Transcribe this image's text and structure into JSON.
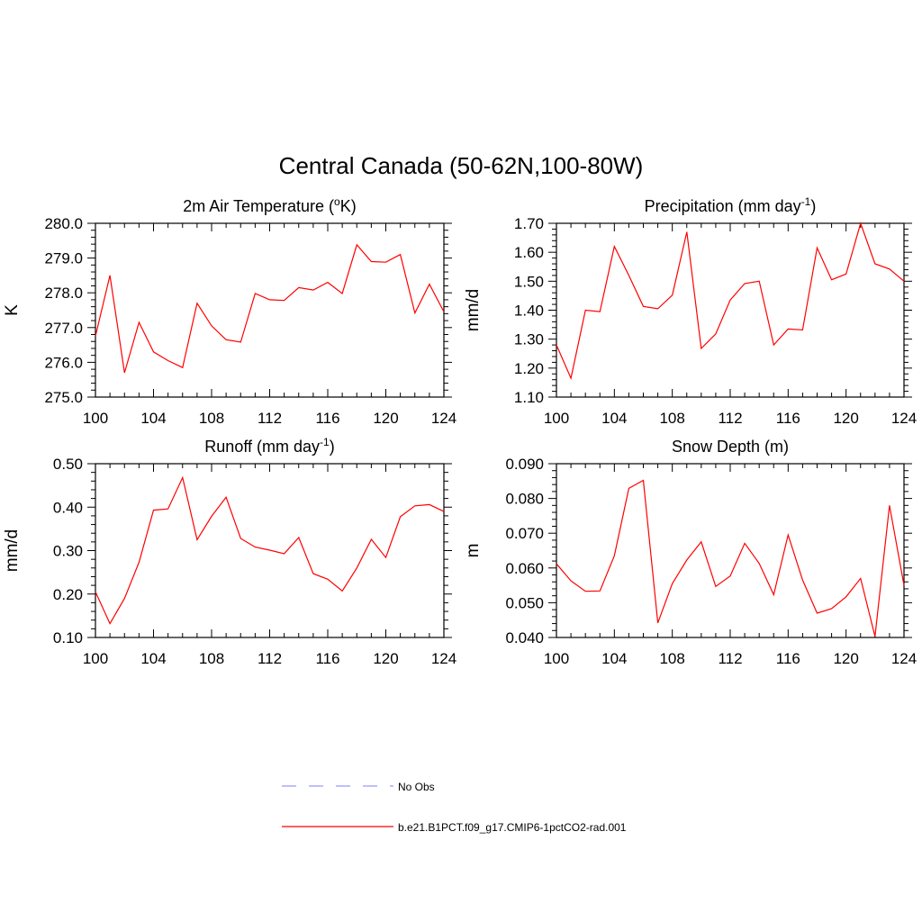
{
  "title": "Central Canada (50-62N,100-80W)",
  "legend": {
    "items": [
      {
        "label": "No Obs",
        "color": "#9999ff",
        "style": "dashed"
      },
      {
        "label": "b.e21.B1PCT.f09_g17.CMIP6-1pctCO2-rad.001",
        "color": "#ff0000",
        "style": "solid"
      }
    ]
  },
  "chart_data": [
    {
      "type": "line",
      "title_main": "2m Air Temperature (",
      "title_sup": "o",
      "title_tail": "K)",
      "ylabel": "K",
      "xlim": [
        100,
        124
      ],
      "ylim": [
        275.0,
        280.0
      ],
      "xticks": [
        100,
        104,
        108,
        112,
        116,
        120,
        124
      ],
      "yticks": [
        275.0,
        276.0,
        277.0,
        278.0,
        279.0,
        280.0
      ],
      "ytick_labels": [
        "275.0",
        "276.0",
        "277.0",
        "278.0",
        "279.0",
        "280.0"
      ],
      "series": [
        {
          "color": "#ff0000",
          "x": [
            100,
            101,
            102,
            103,
            104,
            105,
            106,
            107,
            108,
            109,
            110,
            111,
            112,
            113,
            114,
            115,
            116,
            117,
            118,
            119,
            120,
            121,
            122,
            123,
            124
          ],
          "y": [
            276.75,
            278.5,
            275.7,
            277.15,
            276.3,
            276.05,
            275.85,
            277.7,
            277.05,
            276.65,
            276.58,
            277.98,
            277.8,
            277.78,
            278.15,
            278.08,
            278.3,
            277.98,
            279.38,
            278.9,
            278.88,
            279.1,
            277.42,
            278.25,
            277.45
          ]
        }
      ]
    },
    {
      "type": "line",
      "title_main": "Precipitation (mm day",
      "title_sup": "-1",
      "title_tail": ")",
      "ylabel": "mm/d",
      "xlim": [
        100,
        124
      ],
      "ylim": [
        1.1,
        1.7
      ],
      "xticks": [
        100,
        104,
        108,
        112,
        116,
        120,
        124
      ],
      "yticks": [
        1.1,
        1.2,
        1.3,
        1.4,
        1.5,
        1.6,
        1.7
      ],
      "ytick_labels": [
        "1.10",
        "1.20",
        "1.30",
        "1.40",
        "1.50",
        "1.60",
        "1.70"
      ],
      "series": [
        {
          "color": "#ff0000",
          "x": [
            100,
            101,
            102,
            103,
            104,
            105,
            106,
            107,
            108,
            109,
            110,
            111,
            112,
            113,
            114,
            115,
            116,
            117,
            118,
            119,
            120,
            121,
            122,
            123,
            124
          ],
          "y": [
            1.28,
            1.165,
            1.4,
            1.395,
            1.62,
            1.52,
            1.413,
            1.405,
            1.452,
            1.67,
            1.268,
            1.318,
            1.435,
            1.492,
            1.5,
            1.28,
            1.335,
            1.332,
            1.615,
            1.505,
            1.525,
            1.7,
            1.56,
            1.542,
            1.5
          ]
        }
      ]
    },
    {
      "type": "line",
      "title_main": "Runoff (mm day",
      "title_sup": "-1",
      "title_tail": ")",
      "ylabel": "mm/d",
      "xlim": [
        100,
        124
      ],
      "ylim": [
        0.1,
        0.5
      ],
      "xticks": [
        100,
        104,
        108,
        112,
        116,
        120,
        124
      ],
      "yticks": [
        0.1,
        0.2,
        0.3,
        0.4,
        0.5
      ],
      "ytick_labels": [
        "0.10",
        "0.20",
        "0.30",
        "0.40",
        "0.50"
      ],
      "series": [
        {
          "color": "#ff0000",
          "x": [
            100,
            101,
            102,
            103,
            104,
            105,
            106,
            107,
            108,
            109,
            110,
            111,
            112,
            113,
            114,
            115,
            116,
            117,
            118,
            119,
            120,
            121,
            122,
            123,
            124
          ],
          "y": [
            0.205,
            0.132,
            0.19,
            0.273,
            0.393,
            0.396,
            0.468,
            0.325,
            0.379,
            0.423,
            0.328,
            0.308,
            0.301,
            0.293,
            0.33,
            0.247,
            0.234,
            0.207,
            0.26,
            0.326,
            0.284,
            0.378,
            0.403,
            0.406,
            0.39
          ]
        }
      ]
    },
    {
      "type": "line",
      "title_main": "Snow Depth (m)",
      "title_sup": "",
      "title_tail": "",
      "ylabel": "m",
      "xlim": [
        100,
        124
      ],
      "ylim": [
        0.04,
        0.09
      ],
      "xticks": [
        100,
        104,
        108,
        112,
        116,
        120,
        124
      ],
      "yticks": [
        0.04,
        0.05,
        0.06,
        0.07,
        0.08,
        0.09
      ],
      "ytick_labels": [
        "0.040",
        "0.050",
        "0.060",
        "0.070",
        "0.080",
        "0.090"
      ],
      "series": [
        {
          "color": "#ff0000",
          "x": [
            100,
            101,
            102,
            103,
            104,
            105,
            106,
            107,
            108,
            109,
            110,
            111,
            112,
            113,
            114,
            115,
            116,
            117,
            118,
            119,
            120,
            121,
            122,
            123,
            124
          ],
          "y": [
            0.0612,
            0.0563,
            0.0533,
            0.0534,
            0.0635,
            0.0829,
            0.0852,
            0.0442,
            0.0555,
            0.0623,
            0.0675,
            0.0547,
            0.0577,
            0.0671,
            0.0613,
            0.0523,
            0.0695,
            0.0565,
            0.047,
            0.0483,
            0.0517,
            0.057,
            0.0403,
            0.078,
            0.055
          ]
        }
      ]
    }
  ]
}
